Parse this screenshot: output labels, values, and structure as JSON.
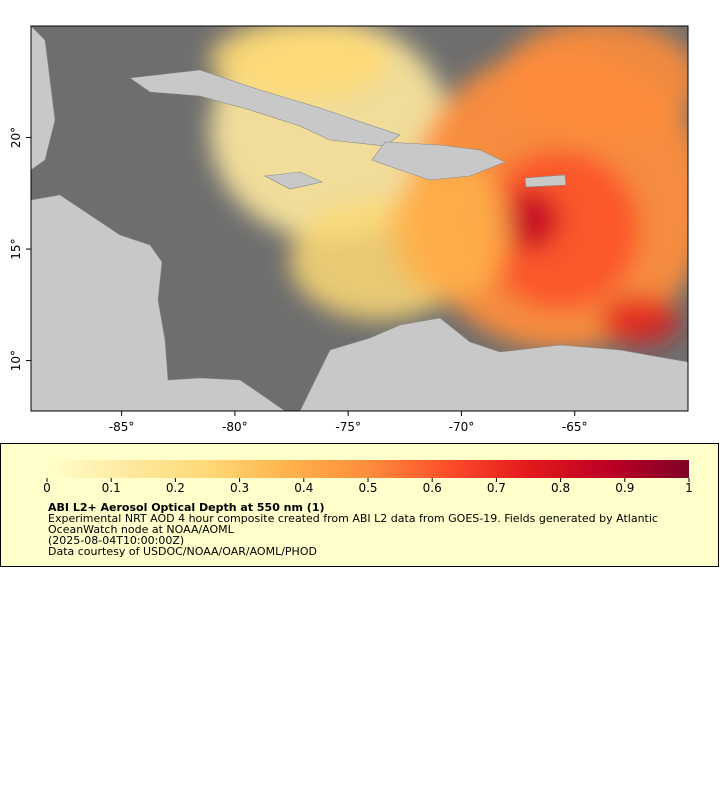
{
  "map": {
    "xlim": [
      -89,
      -60
    ],
    "ylim": [
      7.74,
      25
    ],
    "xticks": [
      {
        "value": -85,
        "label": "-85°"
      },
      {
        "value": -80,
        "label": "-80°"
      },
      {
        "value": -75,
        "label": "-75°"
      },
      {
        "value": -70,
        "label": "-70°"
      },
      {
        "value": -65,
        "label": "-65°"
      }
    ],
    "yticks": [
      {
        "value": 10,
        "label": "10°"
      },
      {
        "value": 15,
        "label": "15°"
      },
      {
        "value": 20,
        "label": "20°"
      }
    ]
  },
  "colorbar": {
    "lim": [
      0,
      1
    ],
    "ticks": [
      0,
      0.1,
      0.2,
      0.3,
      0.4,
      0.5,
      0.6,
      0.7,
      0.8,
      0.9,
      1
    ],
    "colors": [
      "#ffffcc",
      "#fee9a0",
      "#fed976",
      "#feb24c",
      "#fd8d3c",
      "#fc4e2a",
      "#e31a1c",
      "#bd0026",
      "#800026"
    ]
  },
  "legend": {
    "title": "ABI L2+ Aerosol Optical Depth at 550 nm (1)",
    "lines": [
      "Experimental NRT AOD 4 hour composite created from ABI L2 data from GOES-19. Fields generated by Atlantic",
      "OceanWatch node at NOAA/AOML",
      "(2025-08-04T10:00:00Z)",
      "Data courtesy of USDOC/NOAA/OAR/AOML/PHOD"
    ]
  }
}
